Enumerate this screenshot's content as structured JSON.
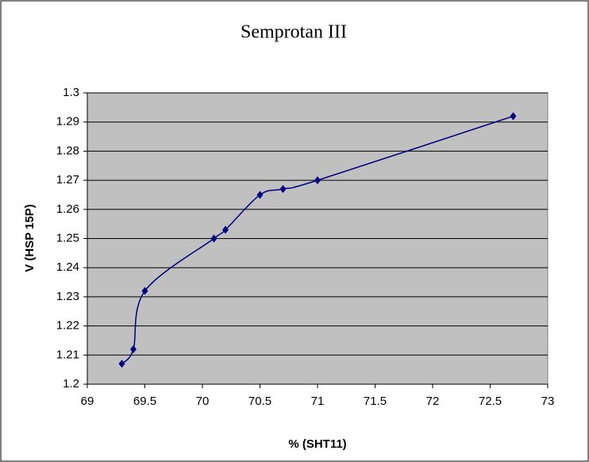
{
  "chart_data": {
    "type": "line",
    "title": "Semprotan III",
    "x_label": "% (SHT11)",
    "y_label": "V (HSP 15P)",
    "x": [
      69.3,
      69.4,
      69.5,
      70.1,
      70.2,
      70.5,
      70.7,
      71,
      72.7
    ],
    "series": [
      {
        "color": "#000080",
        "values": [
          1.207,
          1.212,
          1.232,
          1.25,
          1.253,
          1.265,
          1.267,
          1.27,
          1.292
        ]
      }
    ],
    "xlim": [
      69,
      73
    ],
    "xticks": [
      69,
      69.5,
      70,
      70.5,
      71,
      71.5,
      72,
      72.5,
      73
    ],
    "ylim": [
      1.2,
      1.3
    ],
    "yticks": [
      1.2,
      1.21,
      1.22,
      1.23,
      1.24,
      1.25,
      1.26,
      1.27,
      1.28,
      1.29,
      1.3
    ],
    "grid": true,
    "smooth": true
  }
}
